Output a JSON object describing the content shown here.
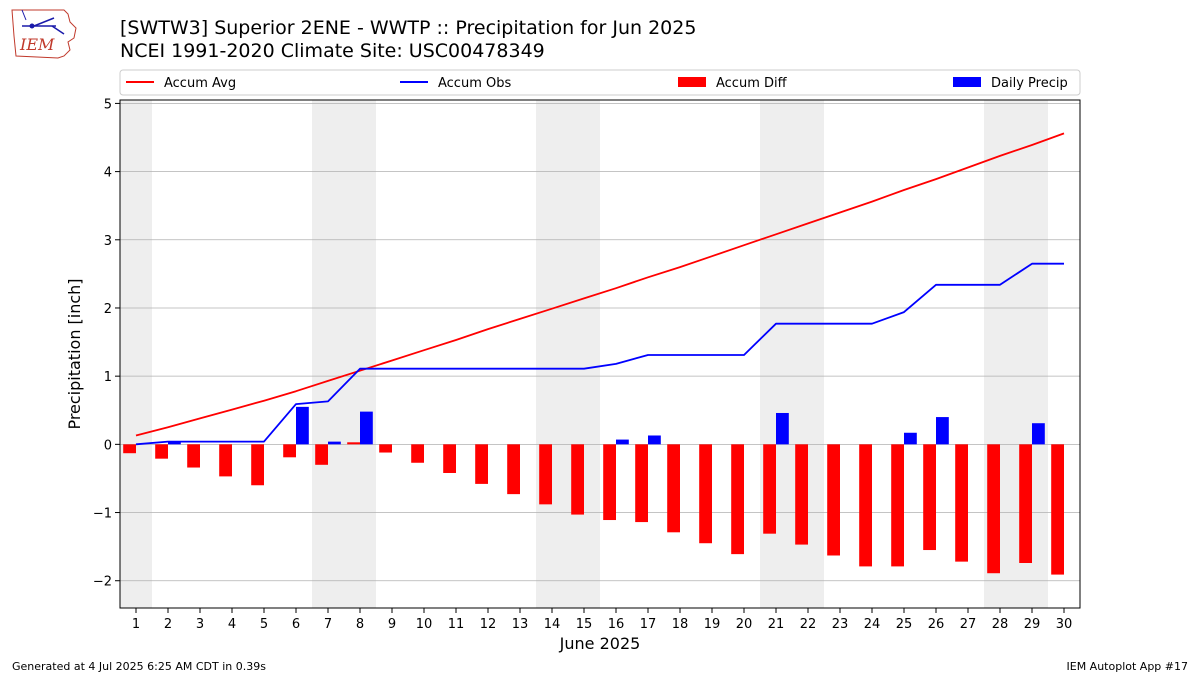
{
  "header": {
    "title_line1": "[SWTW3] Superior 2ENE - WWTP :: Precipitation for Jun 2025",
    "title_line2": "NCEI 1991-2020 Climate Site: USC00478349",
    "logo_text": "IEM"
  },
  "footer": {
    "left": "Generated at 4 Jul 2025 6:25 AM CDT in 0.39s",
    "right": "IEM Autoplot App #17"
  },
  "colors": {
    "avg": "#ff0000",
    "obs": "#0000ff",
    "diff": "#ff0000",
    "daily": "#0000ff",
    "weekend": "#eeeeee",
    "grid": "#b0b0b0"
  },
  "chart_data": {
    "type": "bar",
    "xlabel": "June 2025",
    "ylabel": "Precipitation [inch]",
    "x": [
      1,
      2,
      3,
      4,
      5,
      6,
      7,
      8,
      9,
      10,
      11,
      12,
      13,
      14,
      15,
      16,
      17,
      18,
      19,
      20,
      21,
      22,
      23,
      24,
      25,
      26,
      27,
      28,
      29,
      30
    ],
    "ylim": [
      -2.4,
      5.05
    ],
    "yticks": [
      -2,
      -1,
      0,
      1,
      2,
      3,
      4,
      5
    ],
    "ytick_labels": [
      "−2",
      "−1",
      "0",
      "1",
      "2",
      "3",
      "4",
      "5"
    ],
    "grid": true,
    "legend_position": "top",
    "shaded_days": [
      1,
      7,
      8,
      14,
      15,
      21,
      22,
      28,
      29
    ],
    "series": [
      {
        "name": "Accum Avg",
        "kind": "line",
        "values": [
          0.13,
          0.25,
          0.38,
          0.51,
          0.64,
          0.78,
          0.93,
          1.08,
          1.23,
          1.38,
          1.53,
          1.69,
          1.84,
          1.99,
          2.14,
          2.29,
          2.45,
          2.6,
          2.76,
          2.92,
          3.08,
          3.24,
          3.4,
          3.56,
          3.73,
          3.89,
          4.06,
          4.23,
          4.39,
          4.56
        ]
      },
      {
        "name": "Accum Obs",
        "kind": "line",
        "values": [
          0,
          0.04,
          0.04,
          0.04,
          0.04,
          0.59,
          0.63,
          1.11,
          1.11,
          1.11,
          1.11,
          1.11,
          1.11,
          1.11,
          1.11,
          1.18,
          1.31,
          1.31,
          1.31,
          1.31,
          1.77,
          1.77,
          1.77,
          1.77,
          1.94,
          2.34,
          2.34,
          2.34,
          2.65,
          2.65
        ]
      },
      {
        "name": "Accum Diff",
        "kind": "bar",
        "values": [
          -0.13,
          -0.21,
          -0.34,
          -0.47,
          -0.6,
          -0.19,
          -0.3,
          0.03,
          -0.12,
          -0.27,
          -0.42,
          -0.58,
          -0.73,
          -0.88,
          -1.03,
          -1.11,
          -1.14,
          -1.29,
          -1.45,
          -1.61,
          -1.31,
          -1.47,
          -1.63,
          -1.79,
          -1.79,
          -1.55,
          -1.72,
          -1.89,
          -1.74,
          -1.91
        ]
      },
      {
        "name": "Daily Precip",
        "kind": "bar",
        "values": [
          0,
          0.04,
          0,
          0,
          0,
          0.55,
          0.04,
          0.48,
          0,
          0,
          0,
          0,
          0,
          0,
          0,
          0.07,
          0.13,
          0,
          0,
          0,
          0.46,
          0,
          0,
          0,
          0.17,
          0.4,
          0,
          0,
          0.31,
          0
        ]
      }
    ]
  }
}
